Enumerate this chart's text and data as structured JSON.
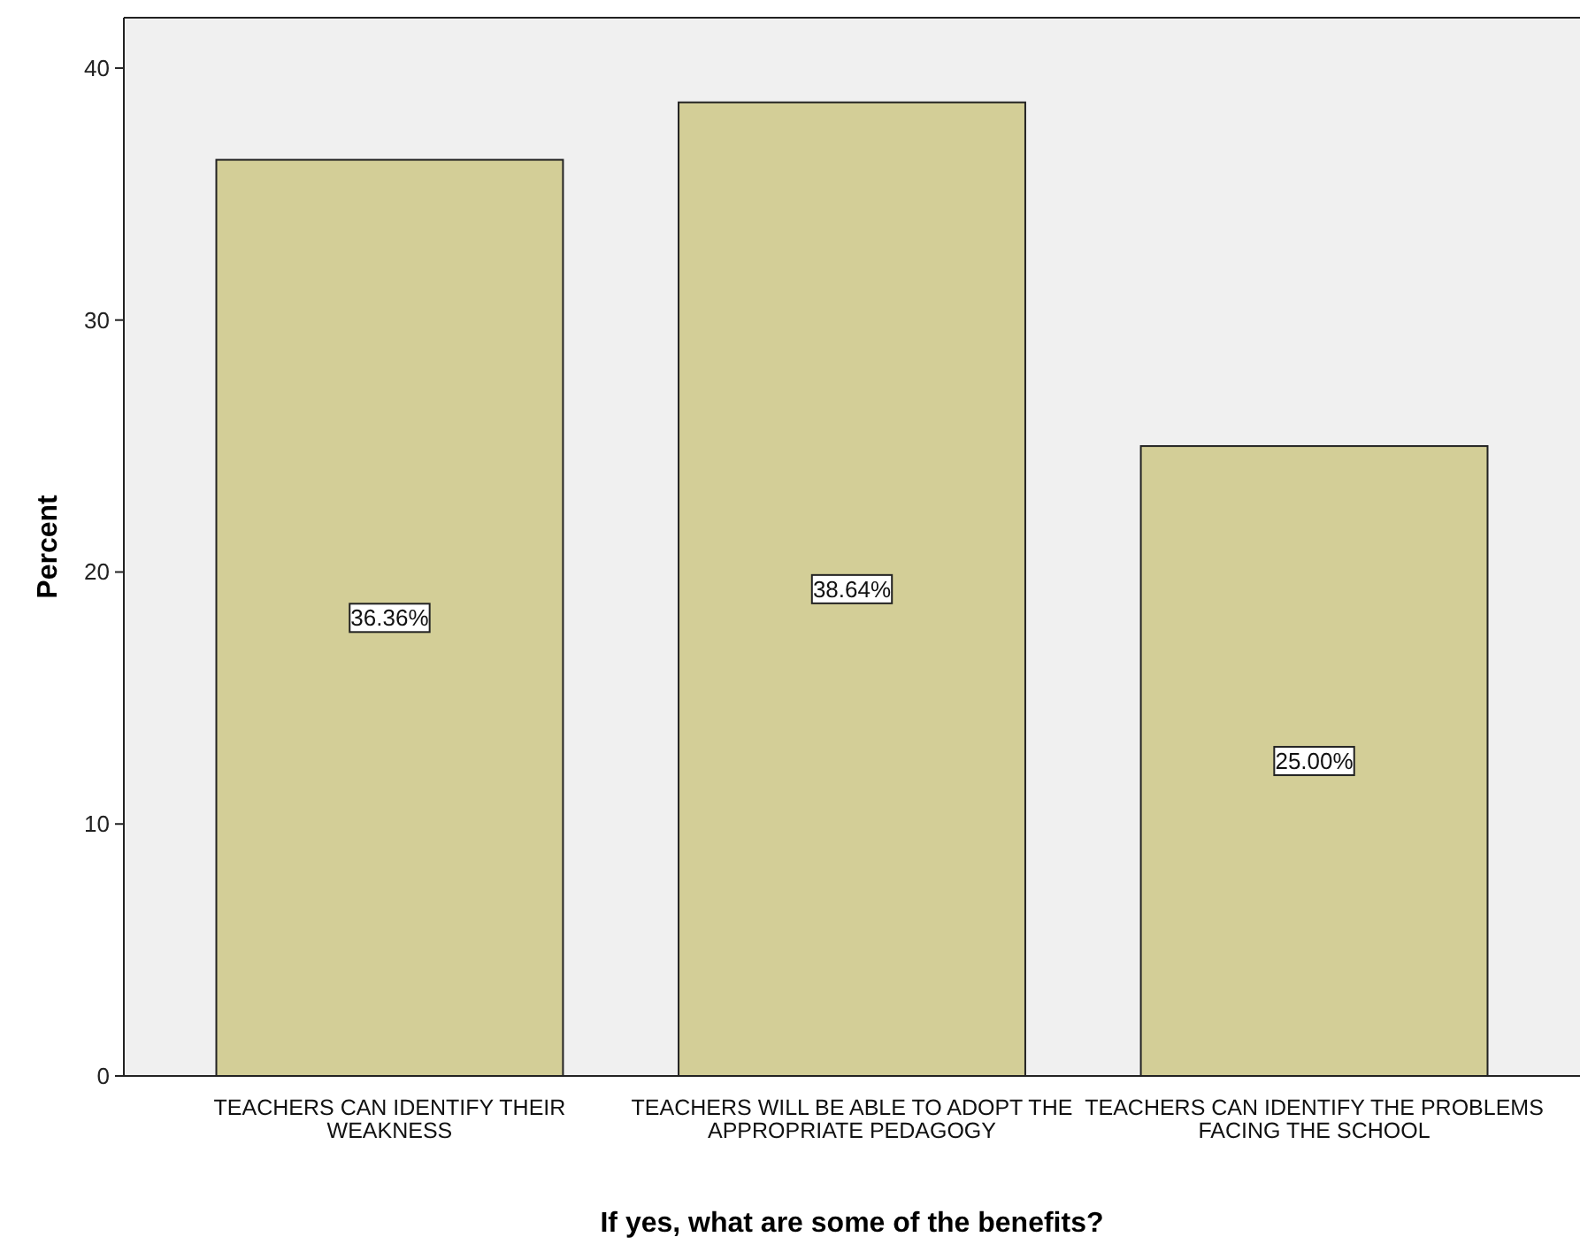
{
  "chart_data": {
    "type": "bar",
    "xlabel": "If yes, what are some of the benefits?",
    "ylabel": "Percent",
    "categories": [
      "TEACHERS CAN IDENTIFY THEIR WEAKNESS",
      "TEACHERS WILL BE ABLE TO ADOPT THE APPROPRIATE PEDAGOGY",
      "TEACHERS CAN IDENTIFY THE PROBLEMS FACING THE SCHOOL"
    ],
    "values": [
      36.36,
      38.64,
      25.0
    ],
    "value_labels": [
      "36.36%",
      "38.64%",
      "25.00%"
    ],
    "color": "#d3ce97",
    "ylim": [
      0,
      42
    ],
    "yticks": [
      0,
      10,
      20,
      30,
      40
    ],
    "grid": false
  }
}
